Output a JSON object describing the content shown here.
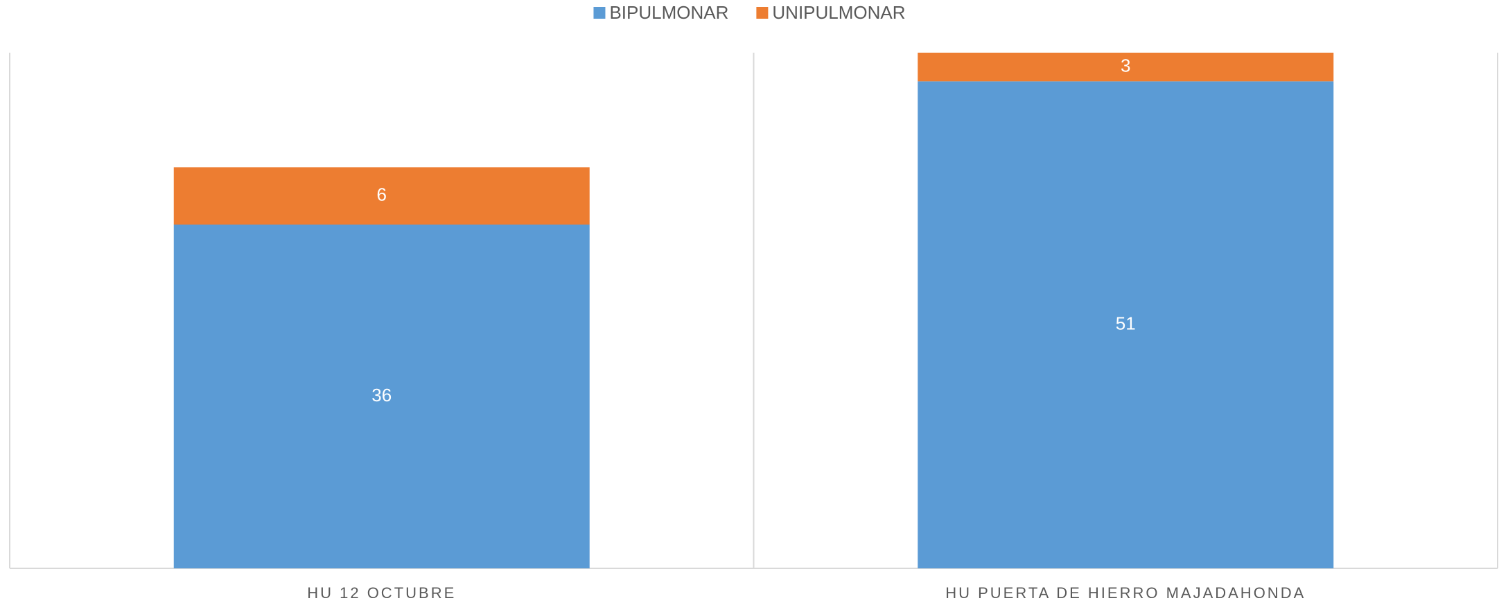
{
  "chart_data": {
    "type": "stacked_bar",
    "categories": [
      "HU 12 OCTUBRE",
      "HU PUERTA DE HIERRO MAJADAHONDA"
    ],
    "series": [
      {
        "name": "BIPULMONAR",
        "color": "#5b9bd5",
        "values": [
          36,
          51
        ]
      },
      {
        "name": "UNIPULMONAR",
        "color": "#ed7d31",
        "values": [
          6,
          3
        ]
      }
    ],
    "ylim": [
      0,
      54
    ],
    "legend": "top"
  }
}
